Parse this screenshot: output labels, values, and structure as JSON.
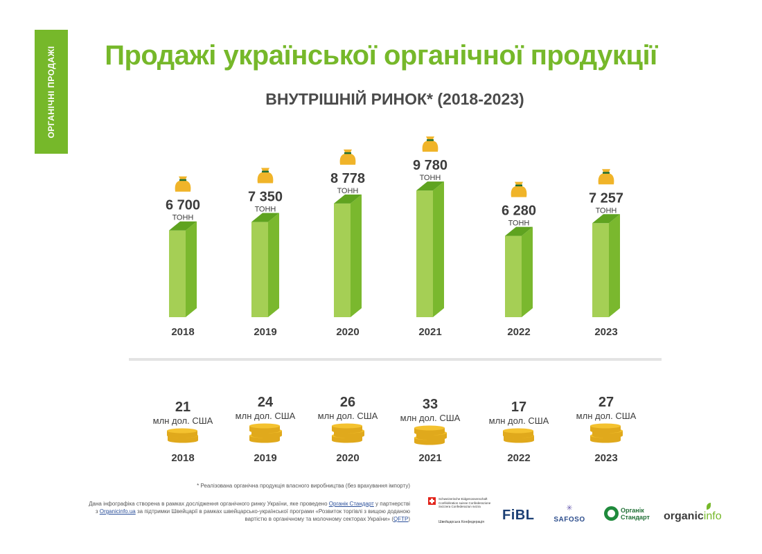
{
  "side_tab": "ОРГАНІЧНІ ПРОДАЖІ",
  "title": "Продажі української органічної продукції",
  "subtitle": "ВНУТРІШНІЙ РИНОК* (2018-2023)",
  "colors": {
    "accent": "#76b82a",
    "bar_light": "#a5cf55",
    "bar_dark": "#7ab82e",
    "bag": "#f0b429",
    "coin": "#f4c22f"
  },
  "chart_data": [
    {
      "type": "bar",
      "title": "ВНУТРІШНІЙ РИНОК* (2018-2023)",
      "categories": [
        "2018",
        "2019",
        "2020",
        "2021",
        "2022",
        "2023"
      ],
      "values": [
        6700,
        7350,
        8778,
        9780,
        6280,
        7257
      ],
      "value_labels": [
        "6 700",
        "7 350",
        "8 778",
        "9 780",
        "6 280",
        "7 257"
      ],
      "unit": "ТОНН",
      "ylim": [
        0,
        10000
      ],
      "icon": "money-bag-icon"
    },
    {
      "type": "bar",
      "categories": [
        "2018",
        "2019",
        "2020",
        "2021",
        "2022",
        "2023"
      ],
      "values": [
        21,
        24,
        26,
        33,
        17,
        27
      ],
      "unit": "млн дол. США",
      "icon": "coin-stack-icon"
    }
  ],
  "footnote": "* Реалізована органічна продукція власного виробництва (без врахування імпорту)",
  "credits": {
    "line1_a": "Дана інфографіка створена в рамках дослідження органічного ринку України, яке проведено ",
    "organic_standard": "Органік Стандарт",
    "line1_b": " у партнерстві",
    "line2_a": "з ",
    "organicinfo": "Organicinfo.ua",
    "line2_b": " за підтримки Швейцарії в рамках швейцарсько-української програми «Розвиток торгівлі з вищою доданою",
    "line3_a": "вартістю в органічному та молочному секторах України» (",
    "qftp": "QFTP",
    "line3_b": ")"
  },
  "logos": {
    "swiss_text": "Schweizerische Eidgenossenschaft Confédération suisse Confederazione Svizzera Confederaziun svizra",
    "swiss_ua": "Швейцарська Конфедерація",
    "fibl": "FiBL",
    "safoso": "SAFOSO",
    "os_line1": "Органік",
    "os_line2": "Стандарт",
    "oi_a": "organic",
    "oi_b": "info"
  }
}
